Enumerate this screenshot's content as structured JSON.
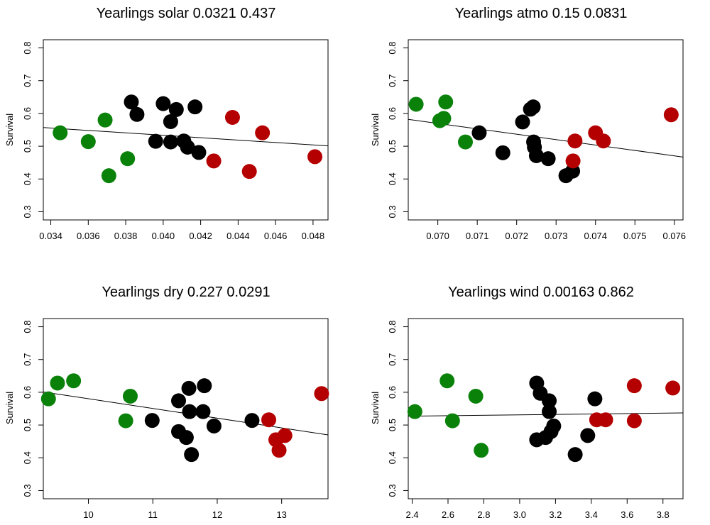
{
  "colors": {
    "early": "#0a820a",
    "mid": "#000000",
    "late": "#b40000"
  },
  "chart_data": [
    {
      "type": "scatter",
      "title": "Yearlings solar 0.0321 0.437",
      "xlabel": "",
      "ylabel": "Survival",
      "xlim": [
        0.0336,
        0.0488
      ],
      "ylim": [
        0.275,
        0.825
      ],
      "xticks": [
        0.034,
        0.036,
        0.038,
        0.04,
        0.042,
        0.044,
        0.046,
        0.048
      ],
      "xtick_labels": [
        "0.034",
        "0.036",
        "0.038",
        "0.040",
        "0.042",
        "0.044",
        "0.046",
        "0.048"
      ],
      "yticks": [
        0.3,
        0.4,
        0.5,
        0.6,
        0.7,
        0.8
      ],
      "ytick_labels": [
        "0.3",
        "0.4",
        "0.5",
        "0.6",
        "0.7",
        "0.8"
      ],
      "fit_line": [
        [
          0.0336,
          0.557
        ],
        [
          0.0488,
          0.501
        ]
      ],
      "points": [
        {
          "x": 0.0345,
          "y": 0.541,
          "group": "early"
        },
        {
          "x": 0.036,
          "y": 0.514,
          "group": "early"
        },
        {
          "x": 0.0369,
          "y": 0.58,
          "group": "early"
        },
        {
          "x": 0.0371,
          "y": 0.41,
          "group": "early"
        },
        {
          "x": 0.0381,
          "y": 0.462,
          "group": "early"
        },
        {
          "x": 0.0383,
          "y": 0.635,
          "group": "mid"
        },
        {
          "x": 0.0386,
          "y": 0.597,
          "group": "mid"
        },
        {
          "x": 0.0396,
          "y": 0.515,
          "group": "mid"
        },
        {
          "x": 0.04,
          "y": 0.63,
          "group": "mid"
        },
        {
          "x": 0.0404,
          "y": 0.513,
          "group": "mid"
        },
        {
          "x": 0.0404,
          "y": 0.575,
          "group": "mid"
        },
        {
          "x": 0.0407,
          "y": 0.612,
          "group": "mid"
        },
        {
          "x": 0.0411,
          "y": 0.516,
          "group": "mid"
        },
        {
          "x": 0.0413,
          "y": 0.497,
          "group": "mid"
        },
        {
          "x": 0.0417,
          "y": 0.62,
          "group": "mid"
        },
        {
          "x": 0.0419,
          "y": 0.481,
          "group": "mid"
        },
        {
          "x": 0.0427,
          "y": 0.455,
          "group": "late"
        },
        {
          "x": 0.0437,
          "y": 0.588,
          "group": "late"
        },
        {
          "x": 0.0446,
          "y": 0.423,
          "group": "late"
        },
        {
          "x": 0.0453,
          "y": 0.541,
          "group": "late"
        },
        {
          "x": 0.0481,
          "y": 0.468,
          "group": "late"
        }
      ]
    },
    {
      "type": "scatter",
      "title": "Yearlings atmo 0.15 0.0831",
      "xlabel": "",
      "ylabel": "Survival",
      "xlim": [
        0.06925,
        0.07622
      ],
      "ylim": [
        0.275,
        0.825
      ],
      "xticks": [
        0.07,
        0.071,
        0.072,
        0.073,
        0.074,
        0.075,
        0.076
      ],
      "xtick_labels": [
        "0.070",
        "0.071",
        "0.072",
        "0.073",
        "0.074",
        "0.075",
        "0.076"
      ],
      "yticks": [
        0.3,
        0.4,
        0.5,
        0.6,
        0.7,
        0.8
      ],
      "ytick_labels": [
        "0.3",
        "0.4",
        "0.5",
        "0.6",
        "0.7",
        "0.8"
      ],
      "fit_line": [
        [
          0.06925,
          0.582
        ],
        [
          0.07622,
          0.467
        ]
      ],
      "points": [
        {
          "x": 0.06945,
          "y": 0.628,
          "group": "early"
        },
        {
          "x": 0.07005,
          "y": 0.578,
          "group": "early"
        },
        {
          "x": 0.07015,
          "y": 0.585,
          "group": "early"
        },
        {
          "x": 0.0702,
          "y": 0.635,
          "group": "early"
        },
        {
          "x": 0.0707,
          "y": 0.513,
          "group": "early"
        },
        {
          "x": 0.07105,
          "y": 0.541,
          "group": "mid"
        },
        {
          "x": 0.07165,
          "y": 0.48,
          "group": "mid"
        },
        {
          "x": 0.07215,
          "y": 0.574,
          "group": "mid"
        },
        {
          "x": 0.07235,
          "y": 0.613,
          "group": "mid"
        },
        {
          "x": 0.07242,
          "y": 0.62,
          "group": "mid"
        },
        {
          "x": 0.07243,
          "y": 0.513,
          "group": "mid"
        },
        {
          "x": 0.07245,
          "y": 0.497,
          "group": "mid"
        },
        {
          "x": 0.0725,
          "y": 0.471,
          "group": "mid"
        },
        {
          "x": 0.0728,
          "y": 0.462,
          "group": "mid"
        },
        {
          "x": 0.07325,
          "y": 0.41,
          "group": "mid"
        },
        {
          "x": 0.07342,
          "y": 0.424,
          "group": "mid"
        },
        {
          "x": 0.07343,
          "y": 0.455,
          "group": "late"
        },
        {
          "x": 0.07348,
          "y": 0.516,
          "group": "late"
        },
        {
          "x": 0.074,
          "y": 0.541,
          "group": "late"
        },
        {
          "x": 0.0742,
          "y": 0.516,
          "group": "late"
        },
        {
          "x": 0.07592,
          "y": 0.596,
          "group": "late"
        }
      ]
    },
    {
      "type": "scatter",
      "title": "Yearlings dry 0.227 0.0291",
      "xlabel": "",
      "ylabel": "Survival",
      "xlim": [
        9.3,
        13.72
      ],
      "ylim": [
        0.275,
        0.825
      ],
      "xticks": [
        10,
        11,
        12,
        13
      ],
      "xtick_labels": [
        "10",
        "11",
        "12",
        "13"
      ],
      "yticks": [
        0.3,
        0.4,
        0.5,
        0.6,
        0.7,
        0.8
      ],
      "ytick_labels": [
        "0.3",
        "0.4",
        "0.5",
        "0.6",
        "0.7",
        "0.8"
      ],
      "fit_line": [
        [
          9.3,
          0.601
        ],
        [
          13.72,
          0.47
        ]
      ],
      "points": [
        {
          "x": 9.38,
          "y": 0.58,
          "group": "early"
        },
        {
          "x": 9.52,
          "y": 0.628,
          "group": "early"
        },
        {
          "x": 9.77,
          "y": 0.635,
          "group": "early"
        },
        {
          "x": 10.58,
          "y": 0.513,
          "group": "early"
        },
        {
          "x": 10.65,
          "y": 0.588,
          "group": "early"
        },
        {
          "x": 10.99,
          "y": 0.514,
          "group": "mid"
        },
        {
          "x": 11.4,
          "y": 0.574,
          "group": "mid"
        },
        {
          "x": 11.4,
          "y": 0.48,
          "group": "mid"
        },
        {
          "x": 11.52,
          "y": 0.462,
          "group": "mid"
        },
        {
          "x": 11.56,
          "y": 0.612,
          "group": "mid"
        },
        {
          "x": 11.57,
          "y": 0.541,
          "group": "mid"
        },
        {
          "x": 11.6,
          "y": 0.41,
          "group": "mid"
        },
        {
          "x": 11.78,
          "y": 0.541,
          "group": "mid"
        },
        {
          "x": 11.8,
          "y": 0.62,
          "group": "mid"
        },
        {
          "x": 11.95,
          "y": 0.497,
          "group": "mid"
        },
        {
          "x": 12.54,
          "y": 0.514,
          "group": "mid"
        },
        {
          "x": 12.8,
          "y": 0.516,
          "group": "late"
        },
        {
          "x": 12.91,
          "y": 0.455,
          "group": "late"
        },
        {
          "x": 12.96,
          "y": 0.423,
          "group": "late"
        },
        {
          "x": 13.05,
          "y": 0.468,
          "group": "late"
        },
        {
          "x": 13.62,
          "y": 0.596,
          "group": "late"
        }
      ]
    },
    {
      "type": "scatter",
      "title": "Yearlings wind 0.00163 0.862",
      "xlabel": "",
      "ylabel": "Survival",
      "xlim": [
        2.378,
        3.912
      ],
      "ylim": [
        0.275,
        0.825
      ],
      "xticks": [
        2.4,
        2.6,
        2.8,
        3.0,
        3.2,
        3.4,
        3.6,
        3.8
      ],
      "xtick_labels": [
        "2.4",
        "2.6",
        "2.8",
        "3.0",
        "3.2",
        "3.4",
        "3.6",
        "3.8"
      ],
      "yticks": [
        0.3,
        0.4,
        0.5,
        0.6,
        0.7,
        0.8
      ],
      "ytick_labels": [
        "0.3",
        "0.4",
        "0.5",
        "0.6",
        "0.7",
        "0.8"
      ],
      "fit_line": [
        [
          2.378,
          0.527
        ],
        [
          3.912,
          0.537
        ]
      ],
      "points": [
        {
          "x": 2.415,
          "y": 0.541,
          "group": "early"
        },
        {
          "x": 2.595,
          "y": 0.635,
          "group": "early"
        },
        {
          "x": 2.625,
          "y": 0.513,
          "group": "early"
        },
        {
          "x": 2.755,
          "y": 0.588,
          "group": "early"
        },
        {
          "x": 2.785,
          "y": 0.423,
          "group": "early"
        },
        {
          "x": 3.095,
          "y": 0.628,
          "group": "mid"
        },
        {
          "x": 3.095,
          "y": 0.455,
          "group": "mid"
        },
        {
          "x": 3.115,
          "y": 0.597,
          "group": "mid"
        },
        {
          "x": 3.145,
          "y": 0.462,
          "group": "mid"
        },
        {
          "x": 3.165,
          "y": 0.574,
          "group": "mid"
        },
        {
          "x": 3.165,
          "y": 0.541,
          "group": "mid"
        },
        {
          "x": 3.175,
          "y": 0.48,
          "group": "mid"
        },
        {
          "x": 3.19,
          "y": 0.497,
          "group": "mid"
        },
        {
          "x": 3.31,
          "y": 0.41,
          "group": "mid"
        },
        {
          "x": 3.38,
          "y": 0.468,
          "group": "mid"
        },
        {
          "x": 3.42,
          "y": 0.58,
          "group": "mid"
        },
        {
          "x": 3.43,
          "y": 0.516,
          "group": "late"
        },
        {
          "x": 3.48,
          "y": 0.516,
          "group": "late"
        },
        {
          "x": 3.64,
          "y": 0.62,
          "group": "late"
        },
        {
          "x": 3.64,
          "y": 0.513,
          "group": "late"
        },
        {
          "x": 3.855,
          "y": 0.613,
          "group": "late"
        }
      ]
    }
  ]
}
